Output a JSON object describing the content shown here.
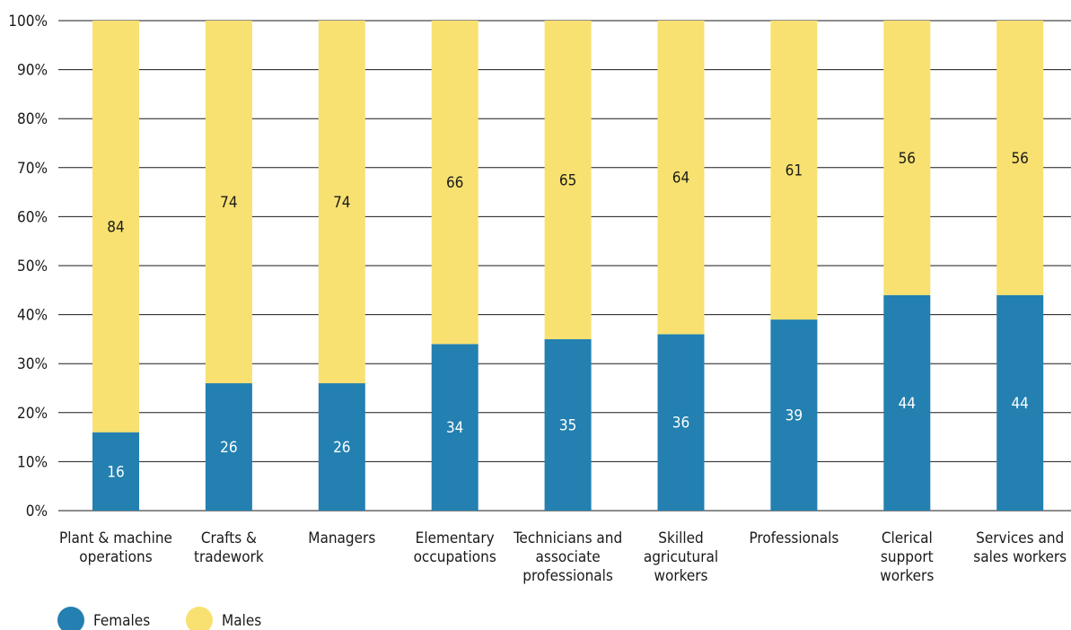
{
  "chart_data": {
    "type": "bar",
    "stacked": true,
    "categories": [
      [
        "Plant & machine",
        "operations"
      ],
      [
        "Crafts &",
        "tradework"
      ],
      [
        "Managers"
      ],
      [
        "Elementary",
        "occupations"
      ],
      [
        "Technicians and",
        "associate",
        "professionals"
      ],
      [
        "Skilled",
        "agricutural",
        "workers"
      ],
      [
        "Professionals"
      ],
      [
        "Clerical",
        "support",
        "workers"
      ],
      [
        "Services and",
        "sales workers"
      ]
    ],
    "series": [
      {
        "name": "Females",
        "color": "#2380b0",
        "label_color": "#ffffff",
        "values": [
          16,
          26,
          26,
          34,
          35,
          36,
          39,
          44,
          44
        ]
      },
      {
        "name": "Males",
        "color": "#f8e170",
        "label_color": "#1a1a1a",
        "values": [
          84,
          74,
          74,
          66,
          65,
          64,
          61,
          56,
          56
        ]
      }
    ],
    "yticks": [
      "0%",
      "10%",
      "20%",
      "30%",
      "40%",
      "50%",
      "60%",
      "70%",
      "80%",
      "90%",
      "100%"
    ],
    "ylim": [
      0,
      100
    ],
    "grid": true,
    "legend_position": "bottom-left"
  }
}
